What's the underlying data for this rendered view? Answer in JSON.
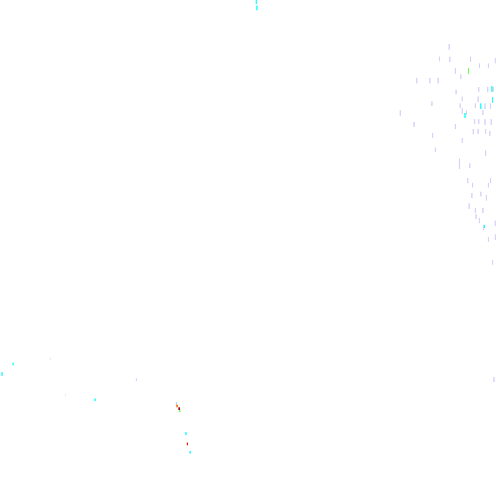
{
  "background_color": "#ffffff",
  "mark_colors": {
    "lavender": "#d8d8fa",
    "cyan": "#33ffff",
    "green": "#77ff66",
    "light_blue": "#bcd8ff",
    "orange": "#ff6600",
    "dark_red": "#990000",
    "red": "#ff2200",
    "pink": "#f6e6f6"
  }
}
